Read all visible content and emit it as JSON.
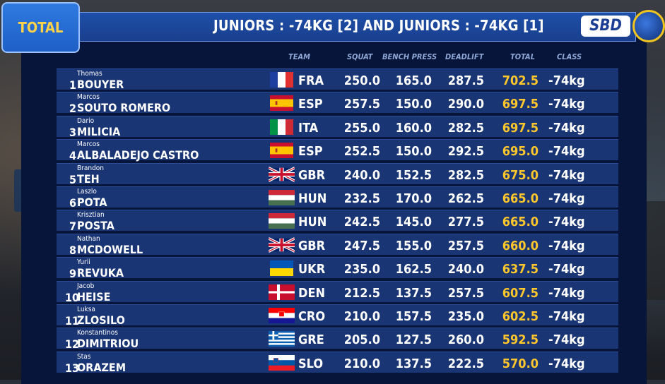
{
  "tab_label": "TOTAL",
  "title": "JUNIORS : -74KG [2] AND JUNIORS : -74KG [1]",
  "logo_text": "SBD",
  "columns": {
    "team": "TEAM",
    "squat": "SQUAT",
    "bench": "BENCH PRESS",
    "deadlift": "DEADLIFT",
    "total": "TOTAL",
    "class": "CLASS"
  },
  "colors": {
    "total_value": "#ffc72c",
    "row_bg": "#1a3574",
    "header_bg": "#1d4fa8",
    "tab_text": "#ffd24a"
  },
  "rows": [
    {
      "rank": "1",
      "first": "Thomas",
      "last": "BOUYER",
      "team": "FRA",
      "squat": "250.0",
      "bench": "165.0",
      "deadlift": "287.5",
      "total": "702.5",
      "class": "-74kg"
    },
    {
      "rank": "2",
      "first": "Marcos",
      "last": "SOUTO ROMERO",
      "team": "ESP",
      "squat": "257.5",
      "bench": "150.0",
      "deadlift": "290.0",
      "total": "697.5",
      "class": "-74kg"
    },
    {
      "rank": "3",
      "first": "Dario",
      "last": "MILICIA",
      "team": "ITA",
      "squat": "255.0",
      "bench": "160.0",
      "deadlift": "282.5",
      "total": "697.5",
      "class": "-74kg"
    },
    {
      "rank": "4",
      "first": "Marcos",
      "last": "ALBALADEJO CASTRO",
      "team": "ESP",
      "squat": "252.5",
      "bench": "150.0",
      "deadlift": "292.5",
      "total": "695.0",
      "class": "-74kg"
    },
    {
      "rank": "5",
      "first": "Brandon",
      "last": "TEH",
      "team": "GBR",
      "squat": "240.0",
      "bench": "152.5",
      "deadlift": "282.5",
      "total": "675.0",
      "class": "-74kg"
    },
    {
      "rank": "6",
      "first": "Laszlo",
      "last": "POTA",
      "team": "HUN",
      "squat": "232.5",
      "bench": "170.0",
      "deadlift": "262.5",
      "total": "665.0",
      "class": "-74kg"
    },
    {
      "rank": "7",
      "first": "Krisztian",
      "last": "POSTA",
      "team": "HUN",
      "squat": "242.5",
      "bench": "145.0",
      "deadlift": "277.5",
      "total": "665.0",
      "class": "-74kg"
    },
    {
      "rank": "8",
      "first": "Nathan",
      "last": "MCDOWELL",
      "team": "GBR",
      "squat": "247.5",
      "bench": "155.0",
      "deadlift": "257.5",
      "total": "660.0",
      "class": "-74kg"
    },
    {
      "rank": "9",
      "first": "Yurii",
      "last": "REVUKA",
      "team": "UKR",
      "squat": "235.0",
      "bench": "162.5",
      "deadlift": "240.0",
      "total": "637.5",
      "class": "-74kg"
    },
    {
      "rank": "10",
      "first": "Jacob",
      "last": "HEISE",
      "team": "DEN",
      "squat": "212.5",
      "bench": "137.5",
      "deadlift": "257.5",
      "total": "607.5",
      "class": "-74kg"
    },
    {
      "rank": "11",
      "first": "Luksa",
      "last": "ZLOSILO",
      "team": "CRO",
      "squat": "210.0",
      "bench": "157.5",
      "deadlift": "235.0",
      "total": "602.5",
      "class": "-74kg"
    },
    {
      "rank": "12",
      "first": "Konstantinos",
      "last": "DIMITRIOU",
      "team": "GRE",
      "squat": "205.0",
      "bench": "127.5",
      "deadlift": "260.0",
      "total": "592.5",
      "class": "-74kg"
    },
    {
      "rank": "13",
      "first": "Stas",
      "last": "ORAZEM",
      "team": "SLO",
      "squat": "210.0",
      "bench": "137.5",
      "deadlift": "222.5",
      "total": "570.0",
      "class": "-74kg"
    }
  ]
}
